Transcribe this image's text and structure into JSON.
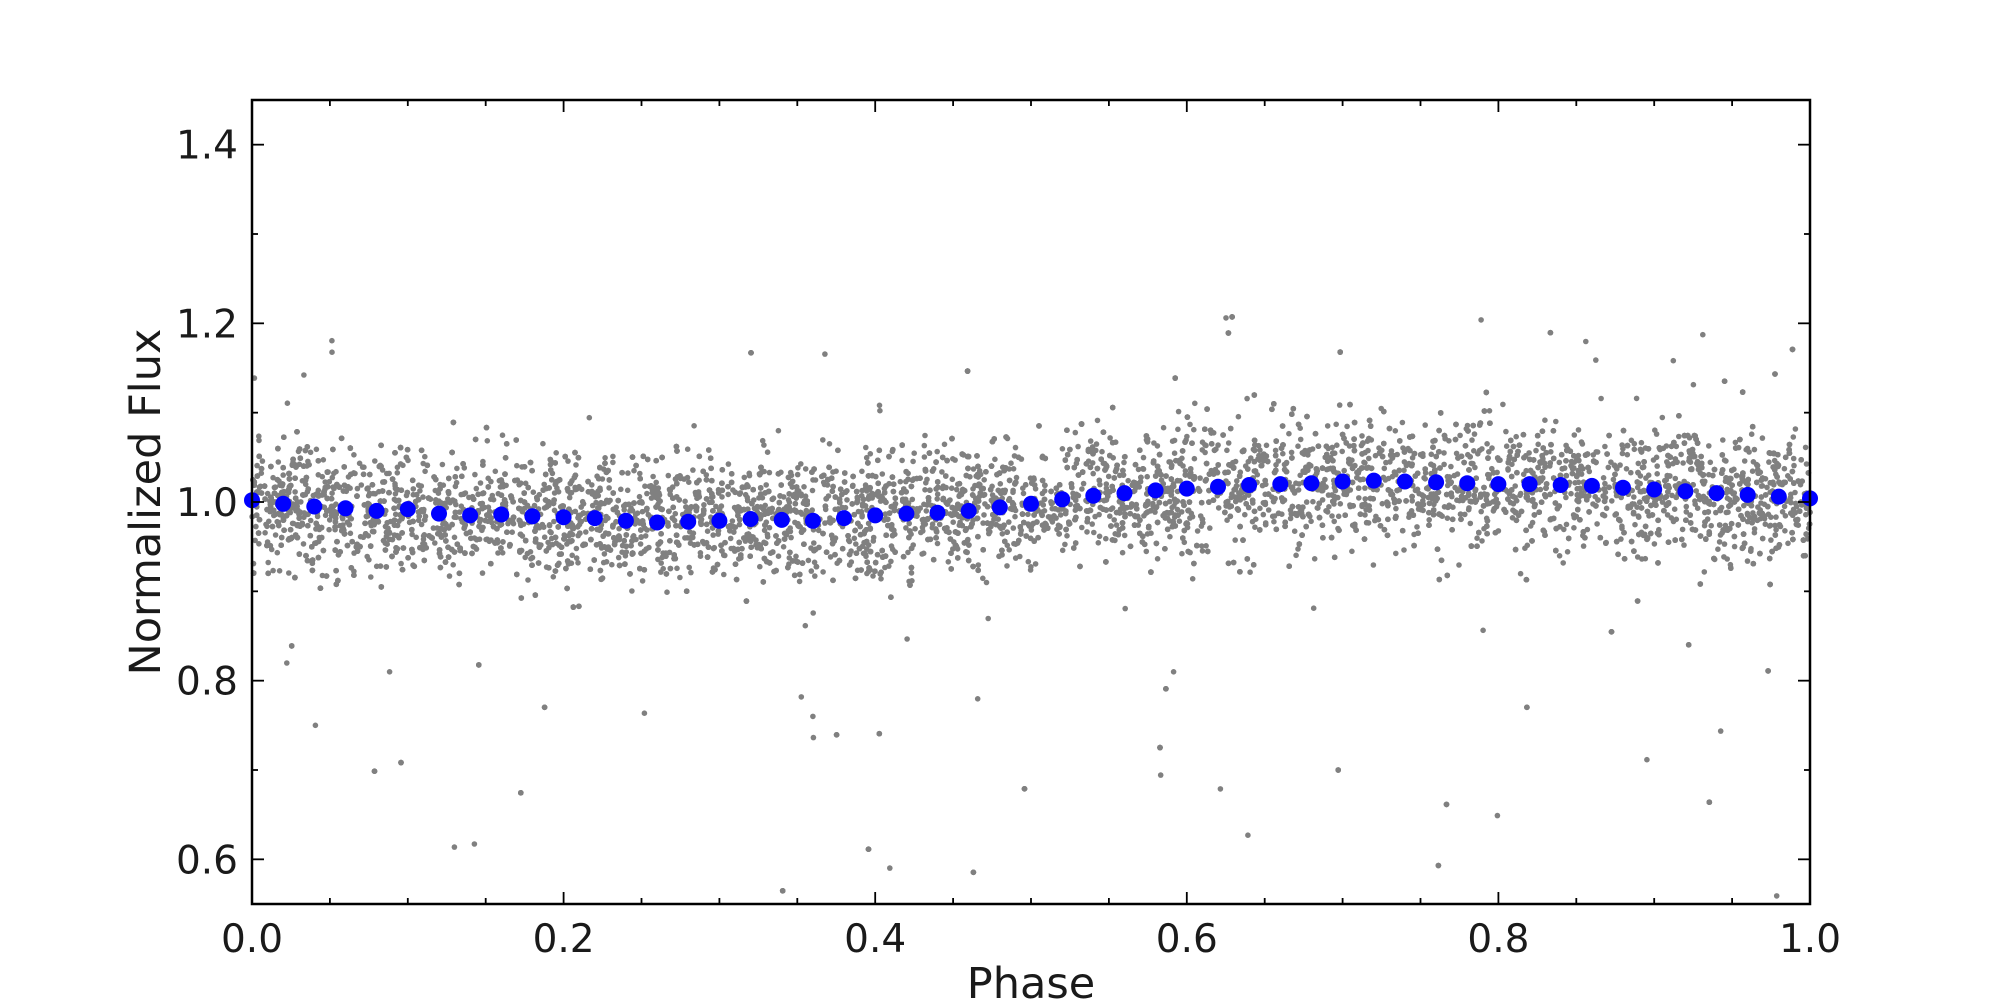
{
  "chart_data": {
    "type": "scatter",
    "title": "",
    "xlabel": "Phase",
    "ylabel": "Normalized Flux",
    "xlim": [
      0.0,
      1.0
    ],
    "ylim": [
      0.55,
      1.45
    ],
    "xticks": [
      0.0,
      0.2,
      0.4,
      0.6,
      0.8,
      1.0
    ],
    "xtick_labels": [
      "0.0",
      "0.2",
      "0.4",
      "0.6",
      "0.8",
      "1.0"
    ],
    "yticks": [
      0.6,
      0.8,
      1.0,
      1.2,
      1.4
    ],
    "ytick_labels": [
      "0.6",
      "0.8",
      "1.0",
      "1.2",
      "1.4"
    ],
    "grid": false,
    "legend": "none",
    "colors": {
      "raw": "#808080",
      "binned": "#0000ff",
      "axes": "#000000"
    },
    "series": [
      {
        "style": "small grey points (raw photometry)",
        "trend": {
          "x": [
            0.0,
            0.05,
            0.1,
            0.15,
            0.2,
            0.25,
            0.3,
            0.35,
            0.4,
            0.45,
            0.5,
            0.55,
            0.6,
            0.65,
            0.7,
            0.75,
            0.8,
            0.85,
            0.9,
            0.95,
            1.0
          ],
          "y": [
            1.0,
            0.993,
            0.99,
            0.985,
            0.983,
            0.978,
            0.979,
            0.98,
            0.985,
            0.99,
            0.998,
            1.008,
            1.015,
            1.02,
            1.023,
            1.021,
            1.02,
            1.018,
            1.013,
            1.008,
            1.003
          ]
        },
        "spread": 0.035,
        "count": 9000
      },
      {
        "style": "large blue points (phase-binned)",
        "x": [
          0.0,
          0.02,
          0.04,
          0.06,
          0.08,
          0.1,
          0.12,
          0.14,
          0.16,
          0.18,
          0.2,
          0.22,
          0.24,
          0.26,
          0.28,
          0.3,
          0.32,
          0.34,
          0.36,
          0.38,
          0.4,
          0.42,
          0.44,
          0.46,
          0.48,
          0.5,
          0.52,
          0.54,
          0.56,
          0.58,
          0.6,
          0.62,
          0.64,
          0.66,
          0.68,
          0.7,
          0.72,
          0.74,
          0.76,
          0.78,
          0.8,
          0.82,
          0.84,
          0.86,
          0.88,
          0.9,
          0.92,
          0.94,
          0.96,
          0.98,
          1.0
        ],
        "y": [
          1.002,
          0.998,
          0.995,
          0.993,
          0.99,
          0.992,
          0.987,
          0.985,
          0.986,
          0.984,
          0.983,
          0.982,
          0.979,
          0.977,
          0.978,
          0.979,
          0.981,
          0.98,
          0.979,
          0.982,
          0.985,
          0.987,
          0.988,
          0.99,
          0.994,
          0.998,
          1.003,
          1.007,
          1.01,
          1.013,
          1.015,
          1.017,
          1.019,
          1.02,
          1.021,
          1.023,
          1.024,
          1.023,
          1.022,
          1.021,
          1.02,
          1.02,
          1.019,
          1.018,
          1.016,
          1.014,
          1.012,
          1.01,
          1.008,
          1.006,
          1.004
        ]
      }
    ]
  }
}
